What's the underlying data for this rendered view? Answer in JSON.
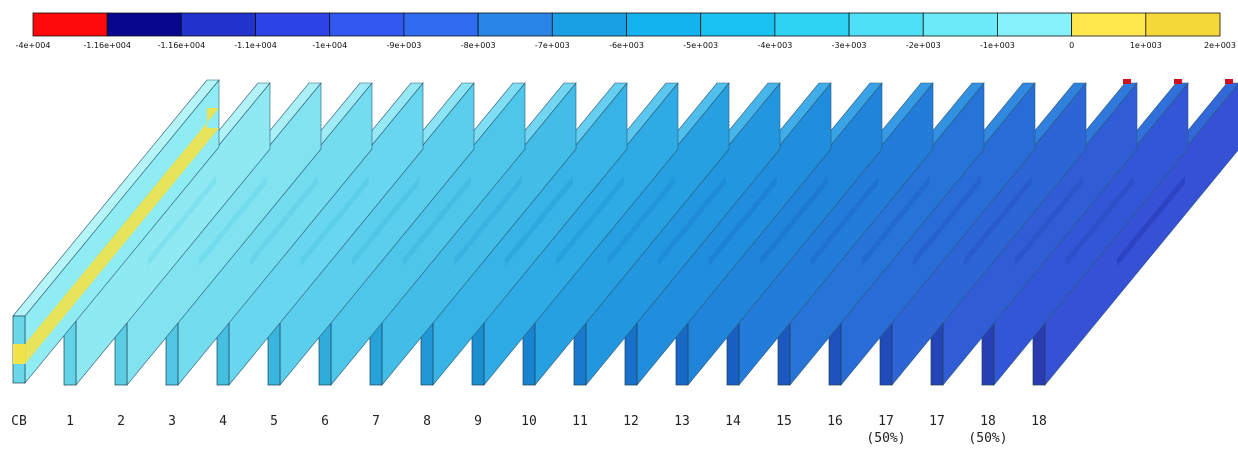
{
  "colorbar": {
    "bins": [
      {
        "color": "#ff0a0a"
      },
      {
        "color": "#06068e"
      },
      {
        "color": "#2233cc"
      },
      {
        "color": "#2c44e6"
      },
      {
        "color": "#3358ef"
      },
      {
        "color": "#2f6cf0"
      },
      {
        "color": "#2a86e6"
      },
      {
        "color": "#199fe4"
      },
      {
        "color": "#13b3ef"
      },
      {
        "color": "#19c2f0"
      },
      {
        "color": "#2ed2f3"
      },
      {
        "color": "#4ee0f6"
      },
      {
        "color": "#6bebf8"
      },
      {
        "color": "#86f1f8"
      },
      {
        "color": "#ffe74d"
      },
      {
        "color": "#f5d83a"
      }
    ],
    "ticks": [
      "-4e+004",
      "-1.16e+004",
      "-1.16e+004",
      "-1.1e+004",
      "-1e+004",
      "-9e+003",
      "-8e+003",
      "-7e+003",
      "-6e+003",
      "-5e+003",
      "-4e+003",
      "-3e+003",
      "-2e+003",
      "-1e+003",
      "0",
      "1e+003",
      "2e+003"
    ]
  },
  "panels": [
    {
      "label": "CB",
      "sub": "",
      "face": "#8fecf2",
      "top": "#b5f5f8",
      "side": "#6ad8e8",
      "band": "#f1e34a"
    },
    {
      "label": "1",
      "sub": "",
      "face": "#8ee9f2",
      "top": "#b3f3f8",
      "side": "#62d3e6"
    },
    {
      "label": "2",
      "sub": "",
      "face": "#82e3f0",
      "top": "#aaf0f6",
      "side": "#5acde4"
    },
    {
      "label": "3",
      "sub": "",
      "face": "#74dcef",
      "top": "#a0ecf6",
      "side": "#4fc6e2"
    },
    {
      "label": "4",
      "sub": "",
      "face": "#68d6ee",
      "top": "#96e8f5",
      "side": "#45bfe0"
    },
    {
      "label": "5",
      "sub": "",
      "face": "#5bceec",
      "top": "#8be3f4",
      "side": "#3ab6de"
    },
    {
      "label": "6",
      "sub": "",
      "face": "#4ec6ea",
      "top": "#7fdef3",
      "side": "#30acdb"
    },
    {
      "label": "7",
      "sub": "",
      "face": "#42bde8",
      "top": "#72d6f1",
      "side": "#27a2d8"
    },
    {
      "label": "8",
      "sub": "",
      "face": "#37b3e6",
      "top": "#66cff0",
      "side": "#2098d5"
    },
    {
      "label": "9",
      "sub": "",
      "face": "#2eaae4",
      "top": "#5bc7ee",
      "side": "#1b8ed2"
    },
    {
      "label": "10",
      "sub": "",
      "face": "#27a0e2",
      "top": "#50bfec",
      "side": "#1884cf"
    },
    {
      "label": "11",
      "sub": "",
      "face": "#2296df",
      "top": "#47b5ea",
      "side": "#177acc"
    },
    {
      "label": "12",
      "sub": "",
      "face": "#208ddd",
      "top": "#40ace8",
      "side": "#1771c9"
    },
    {
      "label": "13",
      "sub": "",
      "face": "#2184db",
      "top": "#3aa3e6",
      "side": "#1868c6"
    },
    {
      "label": "14",
      "sub": "",
      "face": "#237cd9",
      "top": "#369ae4",
      "side": "#1a60c3"
    },
    {
      "label": "15",
      "sub": "",
      "face": "#2674d8",
      "top": "#3391e2",
      "side": "#1c58c0"
    },
    {
      "label": "16",
      "sub": "",
      "face": "#2a6cd7",
      "top": "#3188e0",
      "side": "#1f51bd"
    },
    {
      "label": "17",
      "sub": "(50%)",
      "face": "#2d64d6",
      "top": "#3080de",
      "side": "#214aba"
    },
    {
      "label": "17",
      "sub": "",
      "face": "#305dd6",
      "top": "#3078dc",
      "side": "#2444b7"
    },
    {
      "label": "18",
      "sub": "(50%)",
      "face": "#3356d6",
      "top": "#3170da",
      "side": "#273fb4"
    },
    {
      "label": "18",
      "sub": "",
      "face": "#3650d6",
      "top": "#3268d8",
      "side": "#2a3ab1",
      "hot": "#1a2aa0"
    }
  ]
}
